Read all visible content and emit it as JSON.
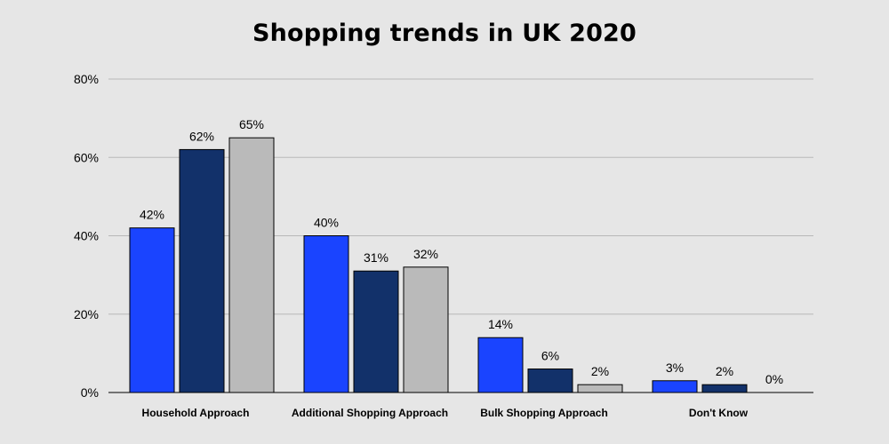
{
  "chart_data": {
    "type": "bar",
    "title": "Shopping trends in UK 2020",
    "xlabel": "",
    "ylabel": "",
    "ylim": [
      0,
      80
    ],
    "yticks": [
      0,
      20,
      40,
      60,
      80
    ],
    "ytick_labels": [
      "0%",
      "20%",
      "40%",
      "60%",
      "80%"
    ],
    "grid": true,
    "legend": "none",
    "categories": [
      "Household Approach",
      "Additional Shopping Approach",
      "Bulk Shopping Approach",
      "Don't Know"
    ],
    "series": [
      {
        "color": "#1a44ff",
        "values": [
          42,
          40,
          14,
          3
        ],
        "labels": [
          "42%",
          "40%",
          "14%",
          "3%"
        ]
      },
      {
        "color": "#12316a",
        "values": [
          62,
          31,
          6,
          2
        ],
        "labels": [
          "62%",
          "31%",
          "6%",
          "2%"
        ]
      },
      {
        "color": "#bababa",
        "values": [
          65,
          32,
          2,
          0
        ],
        "labels": [
          "65%",
          "32%",
          "2%",
          "0%"
        ]
      }
    ]
  },
  "colors": {
    "background": "#e6e6e6",
    "gridline": "#b8b8b8",
    "axis": "#000000"
  }
}
